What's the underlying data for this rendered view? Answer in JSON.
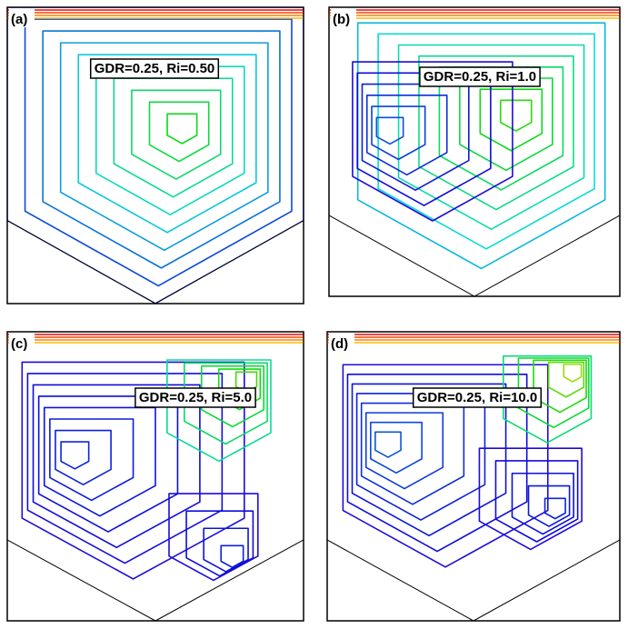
{
  "panels": [
    {
      "label": "(a)",
      "annotation": "GDR=0.25, Ri=0.50"
    },
    {
      "label": "(b)",
      "annotation": "GDR=0.25, Ri=1.0"
    },
    {
      "label": "(c)",
      "annotation": "GDR=0.25, Ri=5.0"
    },
    {
      "label": "(d)",
      "annotation": "GDR=0.25, Ri=10.0"
    }
  ]
}
